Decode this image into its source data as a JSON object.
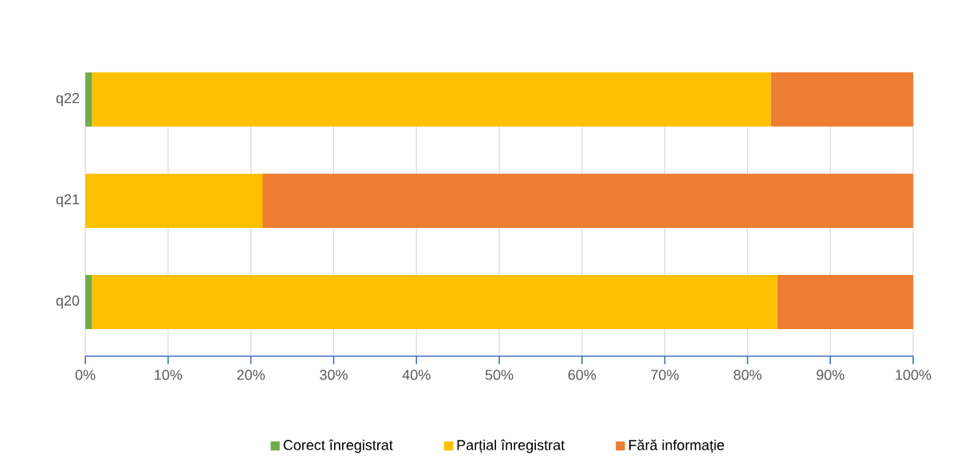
{
  "chart_data": {
    "type": "bar",
    "orientation": "horizontal",
    "stacked": true,
    "categories": [
      "q22",
      "q21",
      "q20"
    ],
    "series": [
      {
        "name": "Corect înregistrat",
        "color": "#70ad47",
        "values": [
          0.8,
          0,
          0.8
        ]
      },
      {
        "name": "Parțial înregistrat",
        "color": "#ffc000",
        "values": [
          82.0,
          21.4,
          82.8
        ]
      },
      {
        "name": "Fără informație",
        "color": "#ed7d31",
        "values": [
          17.2,
          78.6,
          16.4
        ]
      }
    ],
    "xlim": [
      0,
      100
    ],
    "xticks": [
      {
        "value": 0,
        "label": "0%"
      },
      {
        "value": 10,
        "label": "10%"
      },
      {
        "value": 20,
        "label": "20%"
      },
      {
        "value": 30,
        "label": "30%"
      },
      {
        "value": 40,
        "label": "40%"
      },
      {
        "value": 50,
        "label": "50%"
      },
      {
        "value": 60,
        "label": "60%"
      },
      {
        "value": 70,
        "label": "70%"
      },
      {
        "value": 80,
        "label": "80%"
      },
      {
        "value": 90,
        "label": "90%"
      },
      {
        "value": 100,
        "label": "100%"
      }
    ],
    "grid": "x",
    "legend": "bottom"
  }
}
